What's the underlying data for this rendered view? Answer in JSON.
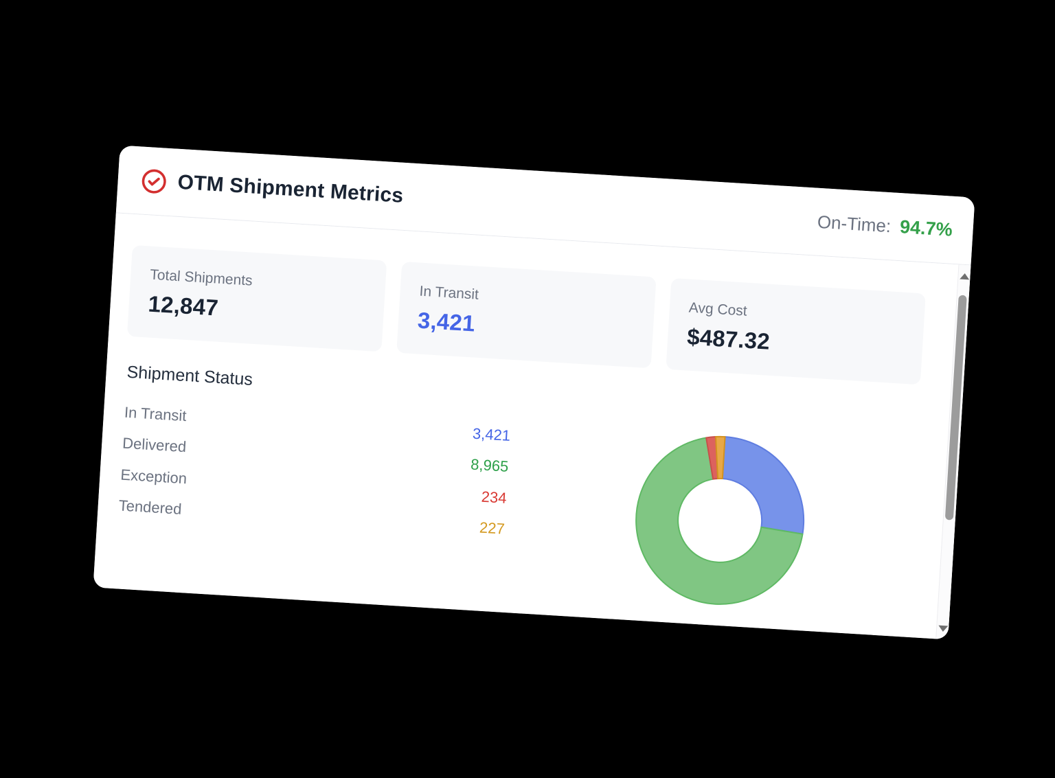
{
  "header": {
    "icon": "check-circle-icon",
    "icon_color": "#d32f2f",
    "title": "OTM Shipment Metrics",
    "on_time_label": "On-Time:",
    "on_time_value": "94.7%",
    "on_time_color": "#34a04a"
  },
  "stats": [
    {
      "label": "Total Shipments",
      "value": "12,847",
      "color": "#1a2433"
    },
    {
      "label": "In Transit",
      "value": "3,421",
      "color": "#4565e6"
    },
    {
      "label": "Avg Cost",
      "value": "$487.32",
      "color": "#1a2433"
    }
  ],
  "status_section": {
    "heading": "Shipment Status",
    "rows": [
      {
        "label": "In Transit",
        "value": "3,421",
        "color": "#4565e6"
      },
      {
        "label": "Delivered",
        "value": "8,965",
        "color": "#2ea04a"
      },
      {
        "label": "Exception",
        "value": "234",
        "color": "#d93a34"
      },
      {
        "label": "Tendered",
        "value": "227",
        "color": "#d49a22"
      }
    ]
  },
  "chart_data": {
    "type": "pie",
    "subtype": "donut",
    "title": "Shipment Status",
    "categories": [
      "In Transit",
      "Delivered",
      "Exception",
      "Tendered"
    ],
    "values": [
      3421,
      8965,
      234,
      227
    ],
    "total": 12847,
    "colors": [
      "#7793ea",
      "#80c683",
      "#dc625e",
      "#e8a846"
    ],
    "border_colors": [
      "#5f7de0",
      "#5fb964",
      "#c8504b",
      "#d4921f"
    ],
    "start_angle_deg": -90,
    "direction": "clockwise",
    "inner_radius_ratio": 0.5,
    "legend": "none"
  },
  "scrollbar": {
    "up_icon": "triangle-up",
    "down_icon": "triangle-down"
  }
}
